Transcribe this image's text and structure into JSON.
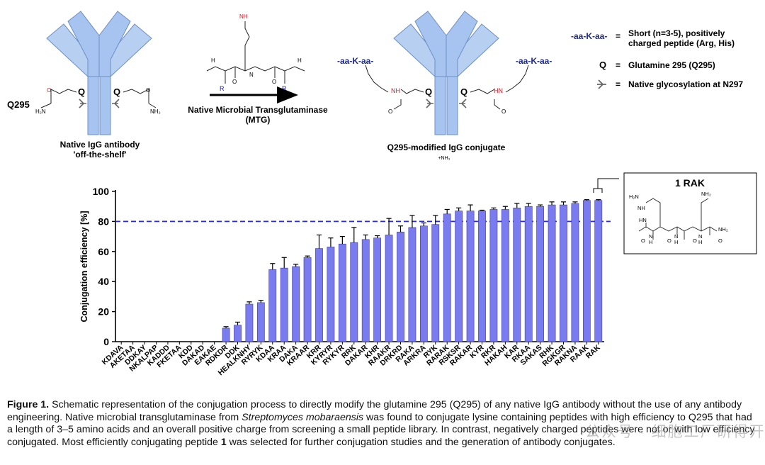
{
  "scheme": {
    "q295_left_label": "Q295",
    "q_letter": "Q",
    "native_caption_line1": "Native IgG antibody",
    "native_caption_line2": "'off-the-shelf'",
    "arrow_label_line1": "Native Microbial Transglutaminase",
    "arrow_label_line2": "(MTG)",
    "peptide_top_nh2": "NH",
    "peptide_r": "R",
    "peptide_h": "H",
    "peptide_n": "N",
    "peptide_o": "O",
    "conjugate_caption": "Q295-modified IgG conjugate",
    "nh3_byproduct": "+NH₃",
    "peptide_tag": "-aa-K-aa-",
    "linker_nh": "NH",
    "linker_hn": "HN",
    "amide_nh2": "NH₂",
    "amide_h2n": "H₂N"
  },
  "legend": {
    "items": [
      {
        "symbol": "-aa-K-aa-",
        "equals": "=",
        "text_line1": "Short (n=3-5), positively",
        "text_line2": "charged peptide (Arg, His)"
      },
      {
        "symbol": "Q",
        "equals": "=",
        "text_line1": "Glutamine 295 (Q295)"
      },
      {
        "symbol": "glycan",
        "equals": "=",
        "text_line1": "Native glycosylation at N297"
      }
    ]
  },
  "rak_box": {
    "title": "1 RAK",
    "atom_labels": [
      "H₂N",
      "NH",
      "HN",
      "NH₂",
      "O",
      "N",
      "H",
      "O",
      "N",
      "H",
      "O",
      "N",
      "H",
      "O",
      "NH₂"
    ]
  },
  "chart_data": {
    "type": "bar",
    "title": "",
    "xlabel": "",
    "ylabel": "Conjugation efficiency [%]",
    "ylim": [
      0,
      100
    ],
    "yticks": [
      0,
      20,
      40,
      60,
      80,
      100
    ],
    "threshold_line": 80,
    "categories": [
      "KDAVA",
      "AKETAA",
      "DDKAY",
      "NKALPAP",
      "KADDD",
      "FKETAA",
      "KDD",
      "DAKAD",
      "EAKAE",
      "RDKDR",
      "DDK",
      "HEALKNHY",
      "RYRYK",
      "KDAA",
      "KRAA",
      "DAKA",
      "KRAAR",
      "KRR",
      "KYRYR",
      "RYKYR",
      "RRK",
      "DAKAR",
      "KHR",
      "RAAKR",
      "DRKRD",
      "RAKA",
      "ARKRA",
      "RYK",
      "RARAK",
      "RSKSR",
      "RAKAR",
      "KYR",
      "RKR",
      "HAKAH",
      "KAR",
      "RKAA",
      "SAKAS",
      "RHK",
      "RGKGR",
      "RAKNA",
      "RAAK",
      "RAK"
    ],
    "values": [
      0,
      0,
      0,
      0,
      0,
      0,
      0,
      0,
      0,
      9,
      11,
      25,
      26,
      48,
      49,
      50,
      56,
      62,
      63,
      65,
      66,
      68,
      69,
      71,
      73,
      76,
      77,
      78,
      85,
      87,
      87,
      87,
      88,
      88,
      89,
      90,
      90,
      91,
      91,
      92,
      94,
      94
    ],
    "errors": [
      0,
      0,
      0,
      0,
      0,
      0,
      0,
      0,
      0,
      1,
      2,
      1.5,
      1.5,
      4,
      7,
      1.5,
      1,
      9,
      6,
      5,
      10,
      3,
      1.5,
      11,
      4,
      8,
      2,
      6,
      3,
      2,
      4,
      0.5,
      1,
      2,
      3,
      2,
      1,
      2,
      2,
      1,
      0.5,
      0.5
    ],
    "bar_color": "#7b7bf0",
    "threshold_color": "#2a2ad6",
    "highlight": "RAK"
  },
  "caption": {
    "label": "Figure 1.",
    "part1": " Schematic representation of the conjugation process to directly modify the glutamine 295 (Q295) of any native IgG antibody without the use of any antibody engineering. Native microbial transglutaminase from ",
    "species": "Streptomyces mobaraensis",
    "part2": " was found to conjugate lysine containing peptides with high efficiency to Q295 that had a length of 3–5 amino acids and an overall positive charge from screening a small peptide library. In contrast, negatively charged peptides were not or with low efficiency conjugated. Most efficiently conjugating peptide ",
    "peptide_number": "1",
    "part3": " was selected for further conjugation studies and the generation of antibody conjugates."
  },
  "watermark": "公众号 · 细胞工厂研得开公游"
}
